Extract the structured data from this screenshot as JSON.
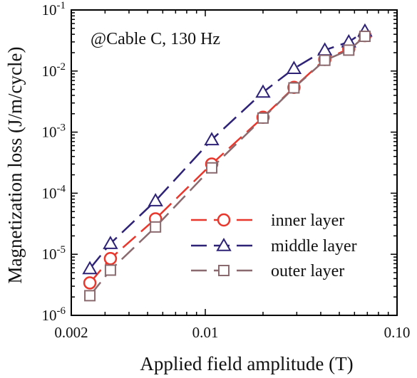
{
  "chart_data": {
    "type": "line",
    "title": "",
    "annotation": "@Cable C, 130 Hz",
    "xlabel": "Applied field amplitude (T)",
    "ylabel": "Magnetization loss (J/m/cycle)",
    "xscale": "log",
    "yscale": "log",
    "xlim": [
      0.002,
      0.1
    ],
    "ylim": [
      1e-06,
      0.1
    ],
    "x_ticks": [
      {
        "value": 0.002,
        "label": "0.002"
      },
      {
        "value": 0.01,
        "label": "0.01"
      },
      {
        "value": 0.1,
        "label": "0.10"
      }
    ],
    "y_ticks": [
      {
        "value": 1e-06,
        "base": "10",
        "exp": "-6"
      },
      {
        "value": 1e-05,
        "base": "10",
        "exp": "-5"
      },
      {
        "value": 0.0001,
        "base": "10",
        "exp": "-4"
      },
      {
        "value": 0.001,
        "base": "10",
        "exp": "-3"
      },
      {
        "value": 0.01,
        "base": "10",
        "exp": "-2"
      },
      {
        "value": 0.1,
        "base": "10",
        "exp": "-1"
      }
    ],
    "grid": false,
    "legend_position": "lower-right",
    "series": [
      {
        "name": "inner layer",
        "color": "#e8372c",
        "marker": "circle",
        "dash": "24 10",
        "x": [
          0.0025,
          0.0032,
          0.0055,
          0.0108,
          0.02,
          0.029,
          0.042,
          0.056,
          0.068
        ],
        "y": [
          3.4e-06,
          8.5e-06,
          3.8e-05,
          0.0003,
          0.00175,
          0.0054,
          0.0155,
          0.023,
          0.038
        ]
      },
      {
        "name": "middle layer",
        "color": "#2e2277",
        "marker": "triangle",
        "dash": "24 10",
        "x": [
          0.0025,
          0.0032,
          0.0055,
          0.0108,
          0.02,
          0.029,
          0.042,
          0.056,
          0.068
        ],
        "y": [
          5.8e-06,
          1.5e-05,
          7.5e-05,
          0.00075,
          0.0045,
          0.011,
          0.022,
          0.03,
          0.045
        ]
      },
      {
        "name": "outer layer",
        "color": "#8a6a6e",
        "marker": "square",
        "dash": "24 10",
        "x": [
          0.0025,
          0.0032,
          0.0055,
          0.0108,
          0.02,
          0.029,
          0.042,
          0.056,
          0.068
        ],
        "y": [
          2.1e-06,
          5.5e-06,
          2.8e-05,
          0.00026,
          0.0017,
          0.0053,
          0.015,
          0.022,
          0.037
        ]
      }
    ]
  }
}
